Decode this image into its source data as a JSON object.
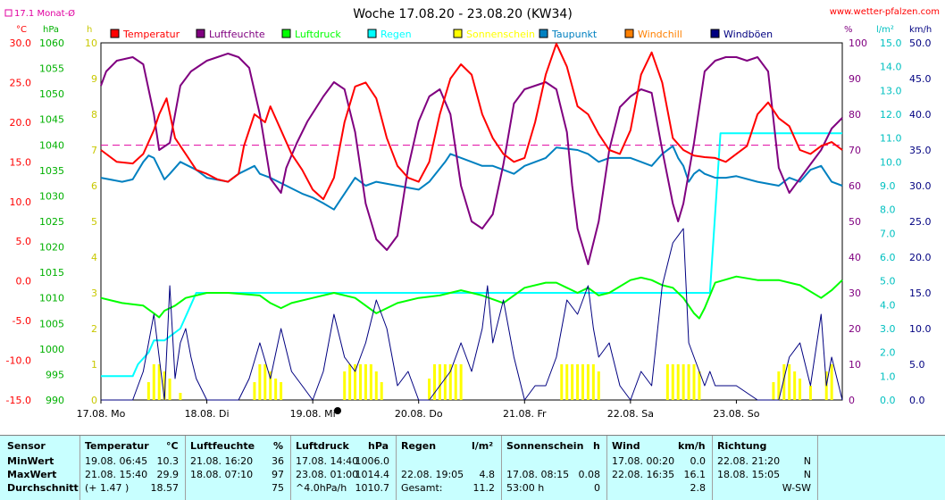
{
  "header": {
    "title": "Woche 17.08.20 - 23.08.20 (KW34)",
    "url": "www.wetter-pfalzen.com",
    "avg_label": "17.1 Monat-Ø"
  },
  "units": {
    "c": "°C",
    "hpa": "hPa",
    "h": "h",
    "pct": "%",
    "lm2": "l/m²",
    "kmh": "km/h"
  },
  "colors": {
    "Temperatur": "#ff0000",
    "Luftfeuchte": "#800080",
    "Luftdruck": "#00ff00",
    "Regen": "#00ffff",
    "Sonnenschein": "#ffff00",
    "Taupunkt": "#0080c0",
    "Windchill": "#ff8000",
    "Windböen": "#000080",
    "avg_line": "#e000a0"
  },
  "chart_data": {
    "type": "line",
    "title": "Woche 17.08.20 - 23.08.20 (KW34)",
    "x_labels": [
      "17.08. Mo",
      "18.08. Di",
      "19.08. Mi",
      "20.08. Do",
      "21.08. Fr",
      "22.08. Sa",
      "23.08. So"
    ],
    "axes": {
      "temp_c": {
        "min": -15,
        "max": 30,
        "ticks": [
          "30.0",
          "25.0",
          "20.0",
          "15.0",
          "10.0",
          "5.0",
          "0.0",
          "-5.0",
          "-10.0",
          "-15.0"
        ]
      },
      "pressure_hpa": {
        "min": 990,
        "max": 1060,
        "ticks": [
          "1060",
          "1055",
          "1050",
          "1045",
          "1040",
          "1035",
          "1030",
          "1025",
          "1020",
          "1015",
          "1010",
          "1005",
          "1000",
          "995",
          "990"
        ]
      },
      "sun_h": {
        "min": 0,
        "max": 10,
        "ticks": [
          "10",
          "9",
          "8",
          "7",
          "6",
          "5",
          "4",
          "3",
          "2",
          "1",
          "0"
        ]
      },
      "humidity_pct": {
        "min": 0,
        "max": 100,
        "ticks": [
          "100",
          "90",
          "80",
          "70",
          "60",
          "50",
          "40",
          "30",
          "20",
          "10",
          "0"
        ]
      },
      "rain_lm2": {
        "min": 0,
        "max": 15,
        "ticks": [
          "15.0",
          "14.0",
          "13.0",
          "12.0",
          "11.0",
          "10.0",
          "9.0",
          "8.0",
          "7.0",
          "6.0",
          "5.0",
          "4.0",
          "3.0",
          "2.0",
          "1.0",
          "0.0"
        ]
      },
      "wind_kmh": {
        "min": 0,
        "max": 50,
        "ticks": [
          "50.0",
          "45.0",
          "40.0",
          "35.0",
          "30.0",
          "25.0",
          "20.0",
          "15.0",
          "10.0",
          "5.0",
          "0.0"
        ]
      }
    },
    "month_avg_temp": 17.1,
    "legend": [
      "Temperatur",
      "Luftfeuchte",
      "Luftdruck",
      "Regen",
      "Sonnenschein",
      "Taupunkt",
      "Windchill",
      "Windböen"
    ],
    "x_range_days": [
      0,
      7
    ],
    "series": [
      {
        "name": "Temperatur",
        "axis": "temp_c",
        "x": [
          0,
          0.15,
          0.3,
          0.4,
          0.5,
          0.55,
          0.62,
          0.7,
          0.8,
          0.9,
          1.0,
          1.1,
          1.2,
          1.3,
          1.35,
          1.45,
          1.55,
          1.6,
          1.7,
          1.8,
          1.9,
          2.0,
          2.1,
          2.2,
          2.3,
          2.4,
          2.5,
          2.6,
          2.7,
          2.8,
          2.9,
          3.0,
          3.1,
          3.2,
          3.3,
          3.4,
          3.5,
          3.6,
          3.7,
          3.8,
          3.9,
          4.0,
          4.1,
          4.2,
          4.3,
          4.4,
          4.5,
          4.6,
          4.7,
          4.8,
          4.9,
          5.0,
          5.1,
          5.2,
          5.3,
          5.4,
          5.5,
          5.6,
          5.7,
          5.8,
          5.9,
          6.0,
          6.1,
          6.2,
          6.3,
          6.4,
          6.5,
          6.6,
          6.7,
          6.8,
          6.9,
          7.0
        ],
        "values": [
          16.5,
          15.0,
          14.8,
          16.0,
          19.0,
          21.0,
          23.0,
          18.0,
          16.0,
          14.0,
          13.5,
          12.8,
          12.5,
          13.5,
          17.0,
          21.0,
          20.0,
          22.0,
          19.0,
          16.0,
          14.0,
          11.5,
          10.3,
          13.0,
          20.0,
          24.5,
          25.0,
          23.0,
          18.0,
          14.5,
          13.0,
          12.5,
          15.0,
          21.0,
          25.5,
          27.3,
          26.0,
          21.0,
          18.0,
          16.0,
          15.0,
          15.5,
          20.0,
          26.0,
          29.9,
          27.0,
          22.0,
          21.0,
          18.5,
          16.5,
          16.0,
          19.0,
          26.0,
          28.8,
          25.0,
          18.0,
          16.5,
          15.8,
          15.6,
          15.5,
          15.0,
          16.0,
          17.0,
          21.0,
          22.5,
          20.5,
          19.5,
          16.5,
          16.0,
          17.0,
          17.5,
          16.5
        ]
      },
      {
        "name": "Luftfeuchte",
        "axis": "humidity_pct",
        "x": [
          0,
          0.05,
          0.15,
          0.3,
          0.4,
          0.5,
          0.55,
          0.65,
          0.75,
          0.85,
          1.0,
          1.1,
          1.2,
          1.3,
          1.4,
          1.5,
          1.6,
          1.7,
          1.75,
          1.85,
          1.95,
          2.1,
          2.2,
          2.3,
          2.4,
          2.5,
          2.6,
          2.7,
          2.8,
          2.9,
          3.0,
          3.1,
          3.2,
          3.3,
          3.4,
          3.5,
          3.6,
          3.7,
          3.8,
          3.9,
          4.0,
          4.1,
          4.2,
          4.3,
          4.4,
          4.45,
          4.5,
          4.6,
          4.7,
          4.8,
          4.9,
          5.0,
          5.1,
          5.2,
          5.3,
          5.4,
          5.45,
          5.5,
          5.6,
          5.7,
          5.8,
          5.9,
          6.0,
          6.1,
          6.2,
          6.3,
          6.4,
          6.5,
          6.6,
          6.7,
          6.8,
          6.9,
          7.0
        ],
        "values": [
          88,
          92,
          95,
          96,
          94,
          80,
          70,
          72,
          88,
          92,
          95,
          96,
          97,
          96,
          93,
          80,
          62,
          58,
          65,
          72,
          78,
          85,
          89,
          87,
          75,
          55,
          45,
          42,
          46,
          65,
          78,
          85,
          87,
          80,
          60,
          50,
          48,
          52,
          66,
          83,
          87,
          88,
          89,
          87,
          75,
          60,
          48,
          38,
          50,
          70,
          82,
          85,
          87,
          86,
          70,
          55,
          50,
          55,
          72,
          92,
          95,
          96,
          96,
          95,
          96,
          92,
          65,
          58,
          62,
          66,
          70,
          76,
          79
        ]
      },
      {
        "name": "Luftdruck",
        "axis": "pressure_hpa",
        "x": [
          0,
          0.2,
          0.4,
          0.5,
          0.55,
          0.6,
          0.7,
          0.8,
          1.0,
          1.2,
          1.5,
          1.6,
          1.7,
          1.8,
          2.0,
          2.2,
          2.4,
          2.6,
          2.8,
          3.0,
          3.2,
          3.4,
          3.6,
          3.8,
          4.0,
          4.2,
          4.3,
          4.4,
          4.5,
          4.6,
          4.7,
          4.8,
          5.0,
          5.1,
          5.2,
          5.3,
          5.4,
          5.5,
          5.6,
          5.65,
          5.7,
          5.8,
          6.0,
          6.2,
          6.4,
          6.6,
          6.8,
          6.9,
          7.0
        ],
        "values": [
          1010.0,
          1009.0,
          1008.5,
          1007.0,
          1006.2,
          1007.5,
          1008.5,
          1010.0,
          1011.0,
          1011.0,
          1010.5,
          1009.0,
          1008.0,
          1009.0,
          1010.0,
          1011.0,
          1010.0,
          1007.0,
          1009.0,
          1010.0,
          1010.5,
          1011.5,
          1010.5,
          1009.0,
          1012.0,
          1013.0,
          1013.0,
          1012.0,
          1011.0,
          1012.0,
          1010.5,
          1011.0,
          1013.5,
          1014.0,
          1013.5,
          1012.5,
          1012.0,
          1010.0,
          1007.0,
          1006.0,
          1008.0,
          1013.0,
          1014.2,
          1013.5,
          1013.5,
          1012.5,
          1010.0,
          1011.5,
          1013.5
        ]
      },
      {
        "name": "Regen",
        "axis": "rain_lm2",
        "x": [
          0,
          0.3,
          0.35,
          0.45,
          0.5,
          0.6,
          0.75,
          0.85,
          0.9,
          1.0,
          5.7,
          5.75,
          5.85,
          7.0
        ],
        "values": [
          1.0,
          1.0,
          1.5,
          2.0,
          2.5,
          2.5,
          3.0,
          4.0,
          4.5,
          4.5,
          4.5,
          4.5,
          11.2,
          11.2
        ]
      },
      {
        "name": "Taupunkt",
        "axis": "temp_c",
        "x": [
          0,
          0.2,
          0.3,
          0.4,
          0.45,
          0.5,
          0.6,
          0.65,
          0.75,
          0.9,
          1.0,
          1.2,
          1.3,
          1.45,
          1.5,
          1.6,
          1.75,
          1.9,
          2.0,
          2.1,
          2.2,
          2.3,
          2.4,
          2.5,
          2.6,
          2.8,
          3.0,
          3.1,
          3.25,
          3.3,
          3.5,
          3.6,
          3.7,
          3.8,
          3.9,
          4.0,
          4.2,
          4.3,
          4.5,
          4.6,
          4.7,
          4.8,
          5.0,
          5.1,
          5.2,
          5.3,
          5.4,
          5.45,
          5.5,
          5.55,
          5.6,
          5.65,
          5.7,
          5.8,
          5.9,
          6.0,
          6.2,
          6.4,
          6.5,
          6.6,
          6.7,
          6.8,
          6.9,
          7.0
        ],
        "values": [
          13.0,
          12.5,
          12.8,
          15.0,
          15.8,
          15.5,
          12.8,
          13.5,
          15.0,
          14.0,
          13.0,
          12.5,
          13.5,
          14.5,
          13.5,
          13.0,
          12.0,
          11.0,
          10.5,
          9.8,
          9.0,
          11.0,
          13.0,
          12.0,
          12.5,
          12.0,
          11.5,
          12.5,
          15.0,
          16.0,
          15.0,
          14.5,
          14.5,
          14.0,
          13.5,
          14.5,
          15.5,
          16.8,
          16.5,
          16.0,
          15.0,
          15.5,
          15.5,
          15.0,
          14.5,
          16.0,
          17.0,
          15.5,
          14.5,
          12.5,
          13.5,
          14.0,
          13.5,
          13.0,
          13.0,
          13.2,
          12.5,
          12.0,
          13.0,
          12.5,
          14.0,
          14.5,
          12.5,
          12.0
        ]
      },
      {
        "name": "Windböen",
        "axis": "wind_kmh",
        "x": [
          0,
          0.1,
          0.2,
          0.3,
          0.4,
          0.5,
          0.6,
          0.65,
          0.7,
          0.75,
          0.8,
          0.85,
          0.9,
          1.0,
          1.2,
          1.3,
          1.4,
          1.5,
          1.6,
          1.7,
          1.8,
          1.9,
          2.0,
          2.1,
          2.2,
          2.3,
          2.4,
          2.5,
          2.6,
          2.7,
          2.8,
          2.9,
          3.0,
          3.1,
          3.2,
          3.3,
          3.4,
          3.5,
          3.6,
          3.65,
          3.7,
          3.8,
          3.9,
          4.0,
          4.1,
          4.2,
          4.3,
          4.4,
          4.5,
          4.6,
          4.65,
          4.7,
          4.8,
          4.9,
          5.0,
          5.1,
          5.2,
          5.3,
          5.4,
          5.5,
          5.55,
          5.6,
          5.7,
          5.75,
          5.8,
          5.9,
          6.0,
          6.2,
          6.4,
          6.5,
          6.6,
          6.7,
          6.8,
          6.85,
          6.9,
          7.0
        ],
        "values": [
          0,
          0,
          0,
          0,
          4,
          12,
          0,
          16,
          3,
          8,
          10,
          6,
          3,
          0,
          0,
          0,
          3,
          8,
          3,
          10,
          4,
          2,
          0,
          4,
          12,
          6,
          4,
          8,
          14,
          10,
          2,
          4,
          0,
          0,
          2,
          4,
          8,
          4,
          10,
          16,
          8,
          14,
          6,
          0,
          2,
          2,
          6,
          14,
          12,
          16,
          10,
          6,
          8,
          2,
          0,
          4,
          2,
          16,
          22,
          24,
          8,
          6,
          2,
          4,
          2,
          2,
          2,
          0,
          0,
          6,
          8,
          2,
          12,
          2,
          6,
          0
        ]
      },
      {
        "name": "Sonnenschein",
        "axis": "sun_h",
        "type": "bar",
        "x": [
          0.45,
          0.5,
          0.55,
          0.6,
          0.65,
          0.75,
          1.45,
          1.5,
          1.55,
          1.6,
          1.65,
          1.7,
          2.3,
          2.35,
          2.4,
          2.45,
          2.5,
          2.55,
          2.6,
          2.65,
          3.1,
          3.15,
          3.2,
          3.25,
          3.3,
          3.35,
          3.4,
          4.35,
          4.4,
          4.45,
          4.5,
          4.55,
          4.6,
          4.65,
          4.7,
          5.35,
          5.4,
          5.45,
          5.5,
          5.55,
          5.6,
          5.65,
          6.35,
          6.4,
          6.45,
          6.5,
          6.55,
          6.6,
          6.7,
          6.85,
          6.9
        ],
        "values": [
          0.5,
          1.0,
          1.0,
          0.8,
          0.6,
          0.2,
          0.5,
          1.0,
          1.0,
          0.8,
          0.6,
          0.5,
          0.8,
          1.0,
          1.0,
          1.0,
          1.0,
          1.0,
          0.8,
          0.5,
          0.6,
          1.0,
          1.0,
          1.0,
          1.0,
          1.0,
          1.0,
          1.0,
          1.0,
          1.0,
          1.0,
          1.0,
          1.0,
          1.0,
          0.8,
          1.0,
          1.0,
          1.0,
          1.0,
          1.0,
          1.0,
          0.8,
          0.5,
          0.8,
          1.0,
          1.0,
          0.8,
          0.6,
          0.4,
          0.8,
          1.0
        ]
      }
    ]
  },
  "stats": {
    "headers": {
      "sensor": "Sensor",
      "temp": "Temperatur",
      "temp_unit": "°C",
      "hum": "Luftfeuchte",
      "hum_unit": "%",
      "press": "Luftdruck",
      "press_unit": "hPa",
      "rain": "Regen",
      "rain_unit": "l/m²",
      "sun": "Sonnenschein",
      "sun_unit": "h",
      "wind": "Wind",
      "wind_unit": "km/h",
      "dir": "Richtung"
    },
    "rows": [
      {
        "label": "MinWert",
        "temp_t": "19.08.  06:45",
        "temp_v": "10.3",
        "hum_t": "21.08.  16:20",
        "hum_v": "36",
        "press_t": "17.08.  14:40",
        "press_v": "1006.0",
        "rain_t": "",
        "rain_v": "",
        "sun_t": "",
        "sun_v": "",
        "wind_t": "17.08.  00:20",
        "wind_v": "0.0",
        "dir_t": "22.08.  21:20",
        "dir_v": "N"
      },
      {
        "label": "MaxWert",
        "temp_t": "21.08.  15:40",
        "temp_v": "29.9",
        "hum_t": "18.08.  07:10",
        "hum_v": "97",
        "press_t": "23.08.  01:00",
        "press_v": "1014.4",
        "rain_t": "22.08.  19:05",
        "rain_v": "4.8",
        "sun_t": "17.08.  08:15",
        "sun_v": "0.08",
        "wind_t": "22.08.  16:35",
        "wind_v": "16.1",
        "dir_t": "18.08.  15:05",
        "dir_v": "N"
      },
      {
        "label": "Durchschnitt",
        "temp_t": "(+ 1.47 )",
        "temp_v": "18.57",
        "hum_t": "",
        "hum_v": "75",
        "press_t": "^4.0hPa/h",
        "press_v": "1010.7",
        "rain_t": "Gesamt:",
        "rain_v": "11.2",
        "sun_t": "53:00 h",
        "sun_v": "0",
        "wind_t": "",
        "wind_v": "2.8",
        "dir_t": "",
        "dir_v": "W-SW"
      }
    ]
  }
}
